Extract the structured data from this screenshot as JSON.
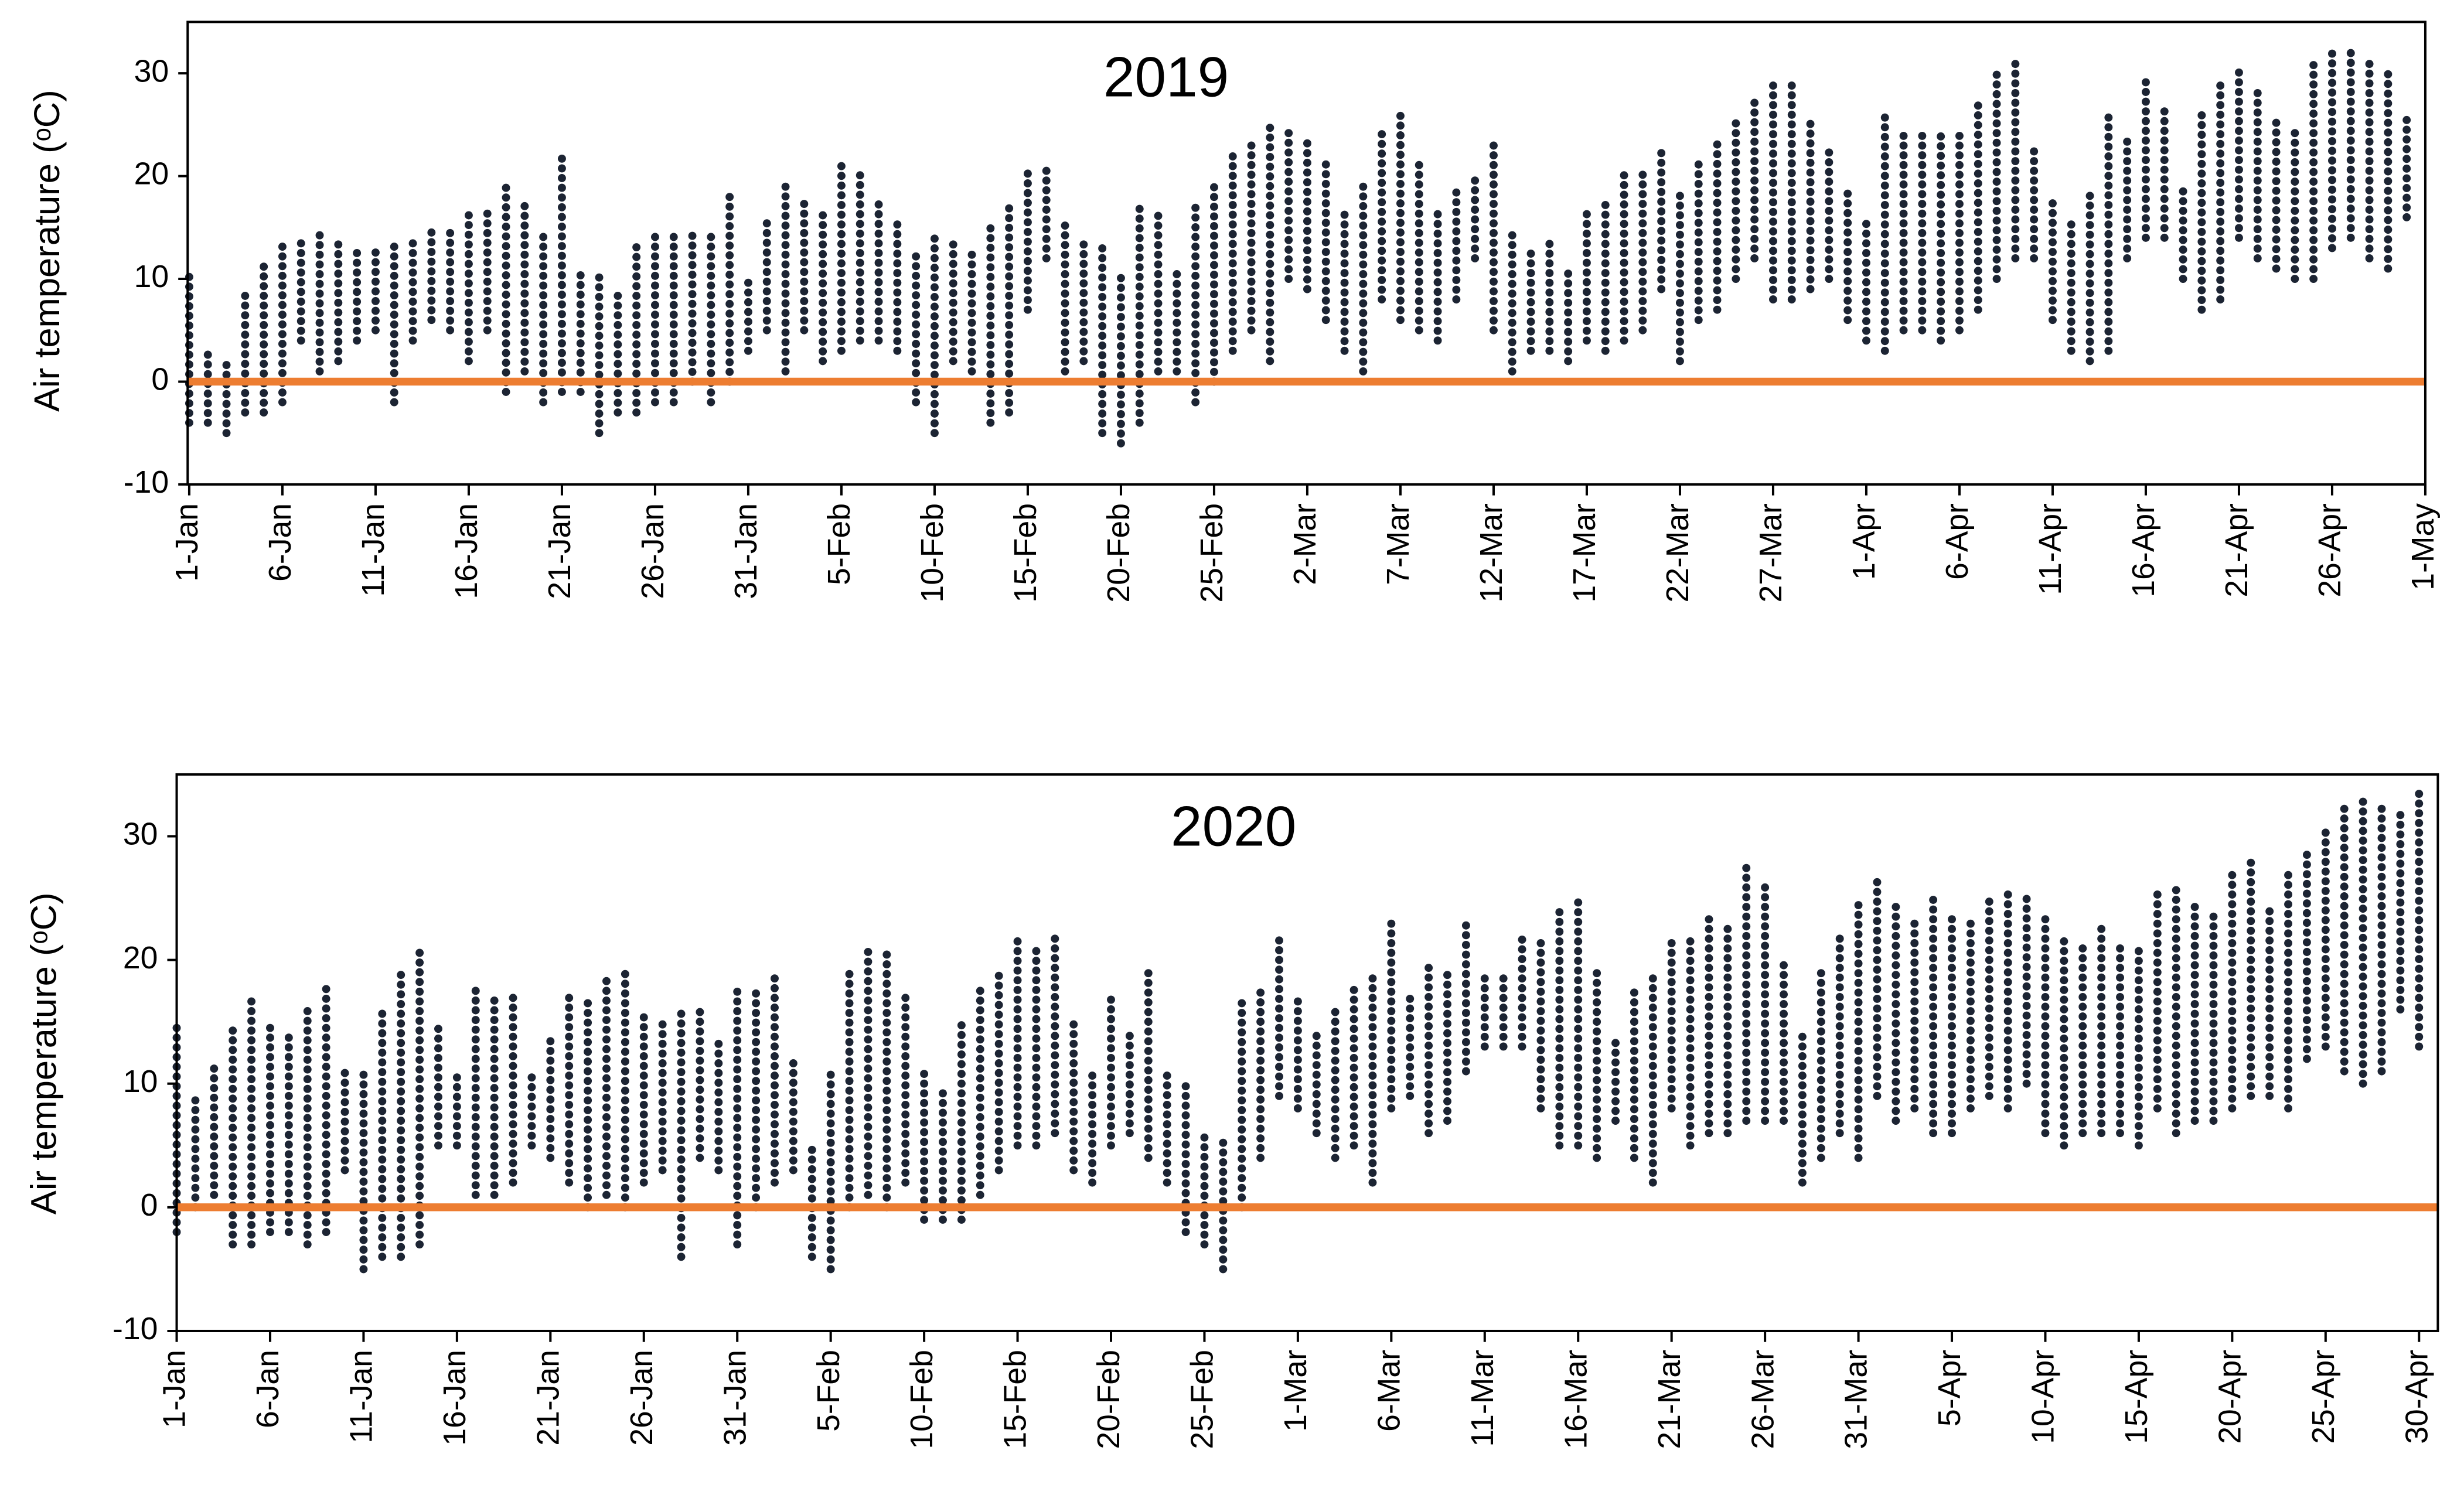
{
  "chart_data": [
    {
      "type": "range",
      "title": "2019",
      "y_label": "Air temperature (ᵒC)",
      "categories": [
        "1-Jan",
        "2-Jan",
        "3-Jan",
        "4-Jan",
        "5-Jan",
        "6-Jan",
        "7-Jan",
        "8-Jan",
        "9-Jan",
        "10-Jan",
        "11-Jan",
        "12-Jan",
        "13-Jan",
        "14-Jan",
        "15-Jan",
        "16-Jan",
        "17-Jan",
        "18-Jan",
        "19-Jan",
        "20-Jan",
        "21-Jan",
        "22-Jan",
        "23-Jan",
        "24-Jan",
        "25-Jan",
        "26-Jan",
        "27-Jan",
        "28-Jan",
        "29-Jan",
        "30-Jan",
        "31-Jan",
        "1-Feb",
        "2-Feb",
        "3-Feb",
        "4-Feb",
        "5-Feb",
        "6-Feb",
        "7-Feb",
        "8-Feb",
        "9-Feb",
        "10-Feb",
        "11-Feb",
        "12-Feb",
        "13-Feb",
        "14-Feb",
        "15-Feb",
        "16-Feb",
        "17-Feb",
        "18-Feb",
        "19-Feb",
        "20-Feb",
        "21-Feb",
        "22-Feb",
        "23-Feb",
        "24-Feb",
        "25-Feb",
        "26-Feb",
        "27-Feb",
        "28-Feb",
        "1-Mar",
        "2-Mar",
        "3-Mar",
        "4-Mar",
        "5-Mar",
        "6-Mar",
        "7-Mar",
        "8-Mar",
        "9-Mar",
        "10-Mar",
        "11-Mar",
        "12-Mar",
        "13-Mar",
        "14-Mar",
        "15-Mar",
        "16-Mar",
        "17-Mar",
        "18-Mar",
        "19-Mar",
        "20-Mar",
        "21-Mar",
        "22-Mar",
        "23-Mar",
        "24-Mar",
        "25-Mar",
        "26-Mar",
        "27-Mar",
        "28-Mar",
        "29-Mar",
        "30-Mar",
        "31-Mar",
        "1-Apr",
        "2-Apr",
        "3-Apr",
        "4-Apr",
        "5-Apr",
        "6-Apr",
        "7-Apr",
        "8-Apr",
        "9-Apr",
        "10-Apr",
        "11-Apr",
        "12-Apr",
        "13-Apr",
        "14-Apr",
        "15-Apr",
        "16-Apr",
        "17-Apr",
        "18-Apr",
        "19-Apr",
        "20-Apr",
        "21-Apr",
        "22-Apr",
        "23-Apr",
        "24-Apr",
        "25-Apr",
        "26-Apr",
        "27-Apr",
        "28-Apr",
        "29-Apr",
        "30-Apr",
        "1-May"
      ],
      "low": [
        -4,
        -4,
        -5,
        -3,
        -3,
        -2,
        4,
        1,
        2,
        4,
        5,
        -2,
        4,
        6,
        5,
        2,
        5,
        -1,
        1,
        -2,
        -1,
        -1,
        -5,
        -3,
        -3,
        -2,
        -2,
        0,
        -2,
        0,
        3,
        5,
        1,
        5,
        2,
        3,
        4,
        4,
        3,
        -2,
        -5,
        2,
        1,
        -4,
        -3,
        7,
        12,
        1,
        2,
        -5,
        -6,
        -4,
        1,
        1,
        -2,
        0,
        3,
        5,
        2,
        10,
        9,
        6,
        3,
        1,
        8,
        6,
        5,
        4,
        8,
        12,
        5,
        1,
        3,
        3,
        2,
        4,
        3,
        4,
        5,
        9,
        2,
        6,
        7,
        10,
        12,
        8,
        8,
        9,
        10,
        6,
        4,
        3,
        5,
        5,
        4,
        5,
        7,
        10,
        12,
        12,
        6,
        3,
        2,
        3,
        12,
        14,
        14,
        10,
        7,
        8,
        14,
        12,
        11,
        10,
        10,
        13,
        14,
        12,
        11,
        16,
        null
      ],
      "high": [
        11,
        3,
        2,
        9,
        12,
        14,
        14,
        15,
        14,
        13,
        13,
        14,
        14,
        15,
        15,
        17,
        17,
        19,
        18,
        15,
        22,
        11,
        11,
        9,
        14,
        15,
        15,
        15,
        15,
        18,
        10,
        16,
        19,
        18,
        17,
        21,
        21,
        18,
        16,
        13,
        14,
        14,
        13,
        15,
        17,
        21,
        21,
        16,
        14,
        13,
        11,
        17,
        17,
        11,
        17,
        19,
        22,
        23,
        25,
        25,
        24,
        22,
        17,
        19,
        25,
        26,
        22,
        17,
        19,
        20,
        23,
        15,
        13,
        14,
        11,
        17,
        18,
        21,
        21,
        23,
        19,
        22,
        24,
        26,
        28,
        29,
        29,
        26,
        23,
        19,
        16,
        26,
        24,
        24,
        24,
        24,
        27,
        30,
        31,
        23,
        18,
        16,
        19,
        26,
        24,
        30,
        27,
        19,
        26,
        29,
        31,
        29,
        26,
        25,
        31,
        32,
        32,
        31,
        30,
        26,
        null
      ],
      "point_color": "#1c2433",
      "zero_line_color": "#ed7d31",
      "ylim": [
        -10,
        35
      ],
      "yticks": [
        -10,
        0,
        10,
        20,
        30
      ],
      "xtick_every": 5
    },
    {
      "type": "range",
      "title": "2020",
      "y_label": "Air temperature (ᵒC)",
      "categories": [
        "1-Jan",
        "2-Jan",
        "3-Jan",
        "4-Jan",
        "5-Jan",
        "6-Jan",
        "7-Jan",
        "8-Jan",
        "9-Jan",
        "10-Jan",
        "11-Jan",
        "12-Jan",
        "13-Jan",
        "14-Jan",
        "15-Jan",
        "16-Jan",
        "17-Jan",
        "18-Jan",
        "19-Jan",
        "20-Jan",
        "21-Jan",
        "22-Jan",
        "23-Jan",
        "24-Jan",
        "25-Jan",
        "26-Jan",
        "27-Jan",
        "28-Jan",
        "29-Jan",
        "30-Jan",
        "31-Jan",
        "1-Feb",
        "2-Feb",
        "3-Feb",
        "4-Feb",
        "5-Feb",
        "6-Feb",
        "7-Feb",
        "8-Feb",
        "9-Feb",
        "10-Feb",
        "11-Feb",
        "12-Feb",
        "13-Feb",
        "14-Feb",
        "15-Feb",
        "16-Feb",
        "17-Feb",
        "18-Feb",
        "19-Feb",
        "20-Feb",
        "21-Feb",
        "22-Feb",
        "23-Feb",
        "24-Feb",
        "25-Feb",
        "26-Feb",
        "27-Feb",
        "28-Feb",
        "29-Feb",
        "1-Mar",
        "2-Mar",
        "3-Mar",
        "4-Mar",
        "5-Mar",
        "6-Mar",
        "7-Mar",
        "8-Mar",
        "9-Mar",
        "10-Mar",
        "11-Mar",
        "12-Mar",
        "13-Mar",
        "14-Mar",
        "15-Mar",
        "16-Mar",
        "17-Mar",
        "18-Mar",
        "19-Mar",
        "20-Mar",
        "21-Mar",
        "22-Mar",
        "23-Mar",
        "24-Mar",
        "25-Mar",
        "26-Mar",
        "27-Mar",
        "28-Mar",
        "29-Mar",
        "30-Mar",
        "31-Mar",
        "1-Apr",
        "2-Apr",
        "3-Apr",
        "4-Apr",
        "5-Apr",
        "6-Apr",
        "7-Apr",
        "8-Apr",
        "9-Apr",
        "10-Apr",
        "11-Apr",
        "12-Apr",
        "13-Apr",
        "14-Apr",
        "15-Apr",
        "16-Apr",
        "17-Apr",
        "18-Apr",
        "19-Apr",
        "20-Apr",
        "21-Apr",
        "22-Apr",
        "23-Apr",
        "24-Apr",
        "25-Apr",
        "26-Apr",
        "27-Apr",
        "28-Apr",
        "29-Apr",
        "30-Apr"
      ],
      "low": [
        -2,
        0,
        1,
        -3,
        -3,
        -2,
        -2,
        -3,
        -2,
        3,
        -5,
        -4,
        -4,
        -3,
        5,
        5,
        1,
        1,
        2,
        5,
        4,
        2,
        0,
        1,
        0,
        2,
        3,
        -4,
        4,
        3,
        -3,
        0,
        2,
        3,
        -4,
        -5,
        0,
        1,
        0,
        2,
        -1,
        -1,
        -1,
        1,
        3,
        5,
        5,
        6,
        3,
        2,
        5,
        6,
        4,
        2,
        -2,
        -3,
        -5,
        0,
        4,
        9,
        8,
        6,
        4,
        5,
        2,
        8,
        9,
        6,
        7,
        11,
        13,
        13,
        13,
        8,
        5,
        5,
        4,
        7,
        4,
        2,
        8,
        5,
        6,
        6,
        7,
        7,
        7,
        2,
        4,
        6,
        4,
        9,
        7,
        8,
        6,
        6,
        8,
        9,
        8,
        10,
        6,
        5,
        6,
        6,
        6,
        5,
        8,
        6,
        7,
        7,
        8,
        9,
        9,
        8,
        12,
        13,
        11,
        10,
        11,
        16,
        13
      ],
      "high": [
        15,
        9,
        12,
        15,
        17,
        15,
        14,
        16,
        18,
        11,
        11,
        16,
        19,
        21,
        15,
        11,
        18,
        17,
        17,
        11,
        14,
        17,
        17,
        19,
        19,
        16,
        15,
        16,
        16,
        14,
        18,
        18,
        19,
        12,
        5,
        11,
        19,
        21,
        21,
        17,
        11,
        10,
        15,
        18,
        19,
        22,
        21,
        22,
        15,
        11,
        17,
        14,
        19,
        11,
        10,
        6,
        6,
        17,
        18,
        22,
        17,
        14,
        16,
        18,
        19,
        23,
        17,
        20,
        19,
        23,
        19,
        19,
        22,
        22,
        24,
        25,
        19,
        14,
        18,
        19,
        22,
        22,
        24,
        23,
        28,
        26,
        20,
        14,
        19,
        22,
        25,
        27,
        25,
        23,
        25,
        24,
        23,
        25,
        26,
        25,
        24,
        22,
        21,
        23,
        21,
        21,
        26,
        26,
        25,
        24,
        27,
        28,
        24,
        27,
        29,
        31,
        33,
        33,
        33,
        32,
        34
      ],
      "point_color": "#1c2433",
      "zero_line_color": "#ed7d31",
      "ylim": [
        -10,
        35
      ],
      "yticks": [
        -10,
        0,
        10,
        20,
        30
      ],
      "xtick_every": 5
    }
  ]
}
